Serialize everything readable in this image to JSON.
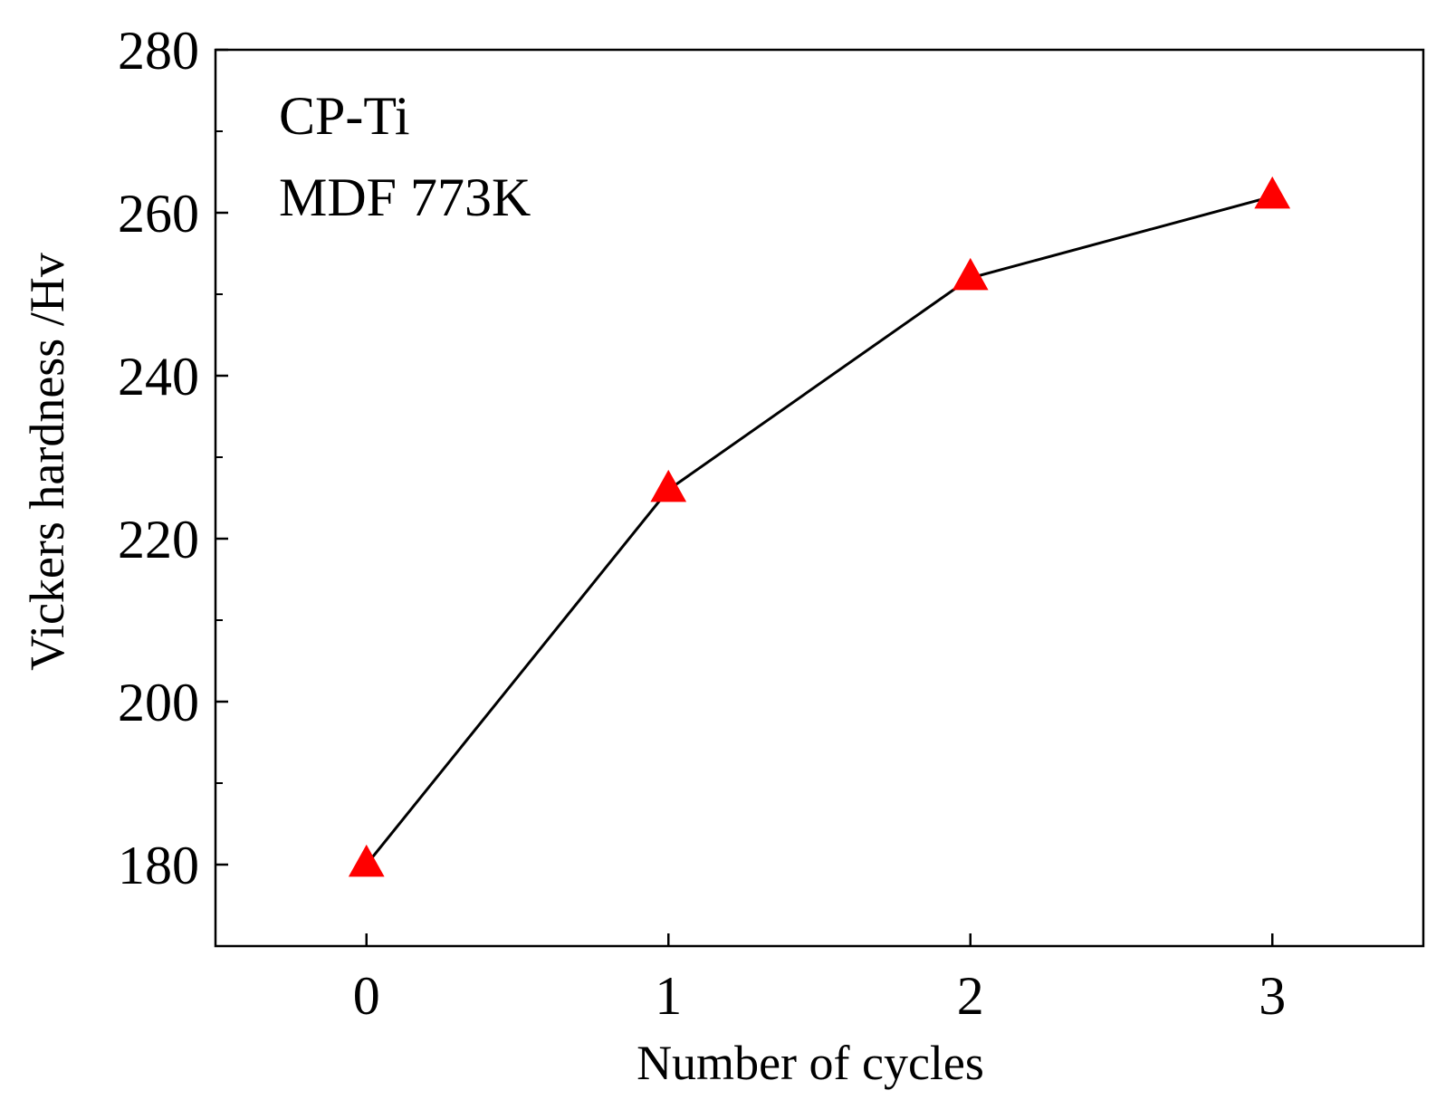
{
  "chart_data": {
    "type": "line",
    "title": "",
    "xlabel": "Number of cycles",
    "ylabel": "Vickers hardness /Hv",
    "x": [
      0,
      1,
      2,
      3
    ],
    "series": [
      {
        "name": "CP-Ti MDF 773K",
        "values": [
          180,
          226,
          252,
          262
        ]
      }
    ],
    "xlim": [
      -0.5,
      3.5
    ],
    "ylim": [
      170,
      280
    ],
    "xticks": [
      "0",
      "1",
      "2",
      "3"
    ],
    "yticks": [
      "180",
      "200",
      "220",
      "240",
      "260",
      "280"
    ],
    "yminor": [
      190,
      210,
      230,
      250,
      270
    ],
    "annotations": [
      "CP-Ti",
      "MDF 773K"
    ],
    "grid": false,
    "marker": "triangle",
    "line_color": "#000000",
    "marker_color": "#ff0000"
  }
}
